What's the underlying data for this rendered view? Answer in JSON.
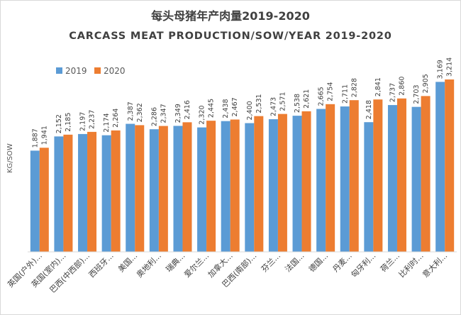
{
  "chart_data": {
    "type": "bar",
    "title": "每头母猪年产肉量2019-2020",
    "subtitle": "CARCASS MEAT PRODUCTION/SOW/YEAR 2019-2020",
    "ylabel": "KG/SOW",
    "xlabel": "",
    "ylim": [
      0,
      3300
    ],
    "grid": false,
    "legend_position": "top-left",
    "categories": [
      "英国(户外)...",
      "英国(室内)...",
      "巴西(中西部)...",
      "西班牙...",
      "美国...",
      "奥地利...",
      "瑞典...",
      "爱尔兰...",
      "加拿大...",
      "巴西(南部)...",
      "芬兰...",
      "法国...",
      "德国...",
      "丹麦...",
      "匈牙利...",
      "荷兰...",
      "比利时...",
      "意大利..."
    ],
    "series": [
      {
        "name": "2019",
        "color": "#5b9bd5",
        "values": [
          1887,
          2152,
          2197,
          2174,
          2387,
          2286,
          2349,
          2320,
          2438,
          2400,
          2473,
          2538,
          2665,
          2711,
          2418,
          2737,
          2703,
          3169
        ],
        "labels": [
          "1,887",
          "2,152",
          "2,197",
          "2,174",
          "2,387",
          "2,286",
          "2,349",
          "2,320",
          "2,438",
          "2,400",
          "2,473",
          "2,538",
          "2,665",
          "2,711",
          "2,418",
          "2,737",
          "2,703",
          "3,169"
        ]
      },
      {
        "name": "2020",
        "color": "#ed7d31",
        "values": [
          1941,
          2185,
          2237,
          2264,
          2362,
          2347,
          2416,
          2445,
          2467,
          2531,
          2571,
          2621,
          2754,
          2828,
          2841,
          2860,
          2905,
          3214
        ],
        "labels": [
          "1,941",
          "2,185",
          "2,237",
          "2,264",
          "2,362",
          "2,347",
          "2,416",
          "2,445",
          "2,467",
          "2,531",
          "2,571",
          "2,621",
          "2,754",
          "2,828",
          "2,841",
          "2,860",
          "2,905",
          "3,214"
        ]
      }
    ]
  }
}
